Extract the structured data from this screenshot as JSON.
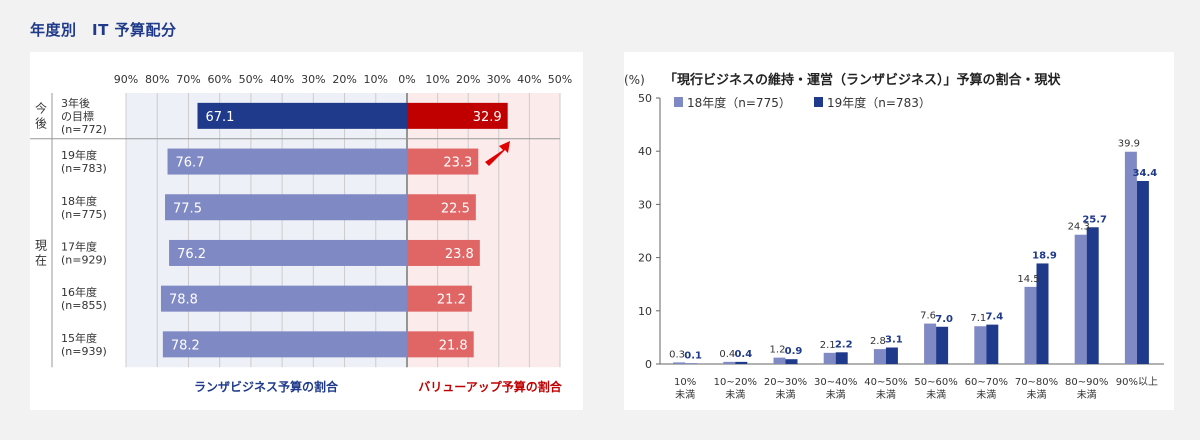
{
  "page_title": "年度別　IT 予算配分",
  "left_chart": {
    "chart_data": {
      "type": "bar",
      "orientation": "horizontal-diverging",
      "x_ticks": [
        "90%",
        "80%",
        "70%",
        "60%",
        "50%",
        "40%",
        "30%",
        "20%",
        "10%",
        "0%",
        "10%",
        "20%",
        "30%",
        "40%",
        "50%"
      ],
      "xlim_left": [
        90,
        0
      ],
      "xlim_right": [
        0,
        50
      ],
      "group_labels": [
        "今後",
        "現在"
      ],
      "categories": [
        {
          "line1": "3年後",
          "line2": "の目標",
          "line3": "(n=772)",
          "group": "今後"
        },
        {
          "line1": "19年度",
          "line2": "(n=783)",
          "group": "現在"
        },
        {
          "line1": "18年度",
          "line2": "(n=775)",
          "group": "現在"
        },
        {
          "line1": "17年度",
          "line2": "(n=929)",
          "group": "現在"
        },
        {
          "line1": "16年度",
          "line2": "(n=855)",
          "group": "現在"
        },
        {
          "line1": "15年度",
          "line2": "(n=939)",
          "group": "現在"
        }
      ],
      "series": [
        {
          "name": "ランザビジネス予算の割合",
          "values": [
            67.1,
            76.7,
            77.5,
            76.2,
            78.8,
            78.2
          ],
          "colors": [
            "#1f3a8a",
            "#7f89c4",
            "#7f89c4",
            "#7f89c4",
            "#7f89c4",
            "#7f89c4"
          ]
        },
        {
          "name": "バリューアップ予算の割合",
          "values": [
            32.9,
            23.3,
            22.5,
            23.8,
            21.2,
            21.8
          ],
          "colors": [
            "#c00000",
            "#e06666",
            "#e06666",
            "#e06666",
            "#e06666",
            "#e06666"
          ]
        }
      ],
      "legend_left_color": "#1f3a8a",
      "legend_right_color": "#c00000"
    }
  },
  "right_chart": {
    "chart_data": {
      "type": "bar",
      "title": "「現行ビジネスの維持・運営（ランザビジネス）」予算の割合・現状",
      "ylabel": "(%)",
      "ylim": [
        0,
        50
      ],
      "y_ticks": [
        0,
        10,
        20,
        30,
        40,
        50
      ],
      "categories": [
        {
          "line1": "10%",
          "line2": "未満"
        },
        {
          "line1": "10~20%",
          "line2": "未満"
        },
        {
          "line1": "20~30%",
          "line2": "未満"
        },
        {
          "line1": "30~40%",
          "line2": "未満"
        },
        {
          "line1": "40~50%",
          "line2": "未満"
        },
        {
          "line1": "50~60%",
          "line2": "未満"
        },
        {
          "line1": "60~70%",
          "line2": "未満"
        },
        {
          "line1": "70~80%",
          "line2": "未満"
        },
        {
          "line1": "80~90%",
          "line2": "未満"
        },
        {
          "line1": "90%以上",
          "line2": ""
        }
      ],
      "series": [
        {
          "name": "18年度（n=775）",
          "values": [
            0.3,
            0.4,
            1.2,
            2.1,
            2.8,
            7.6,
            7.1,
            14.5,
            24.3,
            39.9
          ],
          "color": "#7f89c4"
        },
        {
          "name": "19年度（n=783）",
          "values": [
            0.1,
            0.4,
            0.9,
            2.2,
            3.1,
            7.0,
            7.4,
            18.9,
            25.7,
            34.4
          ],
          "color": "#1f3a8a"
        }
      ],
      "legend_position": "top-left"
    }
  }
}
